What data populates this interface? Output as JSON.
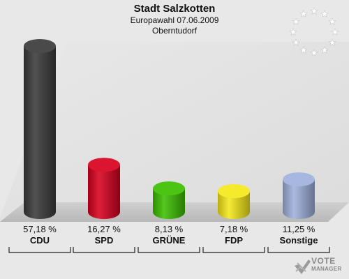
{
  "header": {
    "title": "Stadt Salzkotten",
    "subtitle": "Europawahl 07.06.2009",
    "district": "Oberntudorf"
  },
  "chart_data": {
    "type": "bar",
    "categories": [
      "CDU",
      "SPD",
      "GRÜNE",
      "FDP",
      "Sonstige"
    ],
    "values": [
      57.18,
      16.27,
      8.13,
      7.18,
      11.25
    ],
    "value_labels": [
      "57,18 %",
      "16,27 %",
      "8,13 %",
      "7,18 %",
      "11,25 %"
    ],
    "colors": [
      "#3a3a3a",
      "#d8001e",
      "#3cbf00",
      "#f5e81a",
      "#9fb1dc"
    ],
    "title": "Stadt Salzkotten",
    "subtitle": "Europawahl 07.06.2009",
    "xlabel": "",
    "ylabel": "",
    "ylim": [
      0,
      60
    ],
    "grid": false,
    "style": "3d-cylinder"
  },
  "logo": {
    "line1": "VOTE",
    "line2": "MANAGER",
    "icon": "vote-manager-check-icon"
  },
  "eu_emblem": {
    "icon": "eu-stars-icon",
    "star_count": 12
  }
}
